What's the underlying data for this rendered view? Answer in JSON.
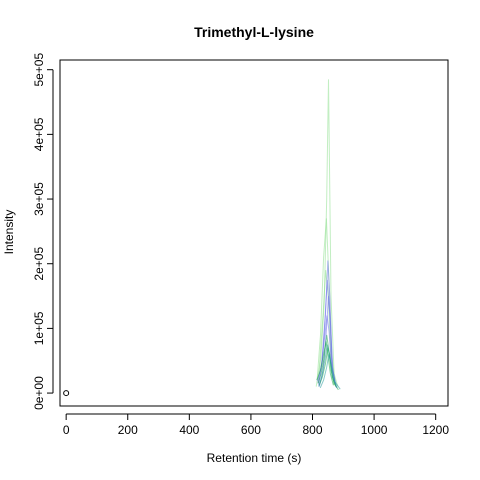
{
  "chart_data": {
    "type": "line",
    "title": "Trimethyl-L-lysine",
    "xlabel": "Retention time (s)",
    "ylabel": "Intensity",
    "xlim": [
      -20,
      1240
    ],
    "ylim": [
      -20000,
      515000
    ],
    "x_ticks": [
      0,
      200,
      400,
      600,
      800,
      1000,
      1200
    ],
    "x_tick_labels": [
      "0",
      "200",
      "400",
      "600",
      "800",
      "1000",
      "1200"
    ],
    "y_ticks": [
      0,
      100000,
      200000,
      300000,
      400000,
      500000
    ],
    "y_tick_labels": [
      "0e+00",
      "1e+05",
      "2e+05",
      "3e+05",
      "4e+05",
      "5e+05"
    ],
    "grid": false,
    "legend": "none",
    "marker_points": [
      {
        "x": 0,
        "y": 0
      }
    ],
    "series_groups": [
      {
        "group": "light-green",
        "color": "#8fe08f",
        "traces": [
          {
            "x": [
              818,
              828,
              838,
              846,
              852,
              860,
              870,
              882
            ],
            "y": [
              15000,
              60000,
              140000,
              300000,
              485000,
              150000,
              30000,
              10000
            ]
          },
          {
            "x": [
              815,
              826,
              836,
              845,
              853,
              862,
              874
            ],
            "y": [
              20000,
              90000,
              210000,
              270000,
              180000,
              60000,
              15000
            ]
          },
          {
            "x": [
              812,
              822,
              834,
              843,
              851,
              860,
              870
            ],
            "y": [
              10000,
              40000,
              120000,
              190000,
              150000,
              50000,
              12000
            ]
          }
        ]
      },
      {
        "group": "blue",
        "color": "#6f74ea",
        "traces": [
          {
            "x": [
              820,
              832,
              842,
              850,
              856,
              864,
              876
            ],
            "y": [
              12000,
              50000,
              120000,
              205000,
              150000,
              40000,
              10000
            ]
          },
          {
            "x": [
              818,
              830,
              840,
              848,
              855,
              863,
              875
            ],
            "y": [
              15000,
              45000,
              110000,
              175000,
              130000,
              45000,
              12000
            ]
          },
          {
            "x": [
              822,
              834,
              844,
              852,
              858,
              866,
              878
            ],
            "y": [
              10000,
              35000,
              90000,
              150000,
              110000,
              35000,
              8000
            ]
          },
          {
            "x": [
              816,
              828,
              838,
              847,
              854,
              862,
              872
            ],
            "y": [
              18000,
              40000,
              80000,
              120000,
              95000,
              40000,
              15000
            ]
          }
        ]
      },
      {
        "group": "green",
        "color": "#1aa84f",
        "traces": [
          {
            "x": [
              818,
              828,
              838,
              846,
              852,
              860,
              870,
              884
            ],
            "y": [
              15000,
              30000,
              55000,
              90000,
              70000,
              35000,
              15000,
              5000
            ]
          },
          {
            "x": [
              822,
              832,
              842,
              850,
              856,
              864,
              876
            ],
            "y": [
              12000,
              25000,
              45000,
              70000,
              60000,
              25000,
              10000
            ]
          },
          {
            "x": [
              814,
              826,
              836,
              844,
              851,
              858,
              868
            ],
            "y": [
              20000,
              35000,
              60000,
              80000,
              55000,
              30000,
              12000
            ]
          }
        ]
      },
      {
        "group": "teal",
        "color": "#2a9d9a",
        "traces": [
          {
            "x": [
              820,
              830,
              840,
              848,
              856,
              866,
              880
            ],
            "y": [
              10000,
              25000,
              50000,
              75000,
              55000,
              25000,
              8000
            ]
          },
          {
            "x": [
              825,
              836,
              846,
              853,
              860,
              872,
              890
            ],
            "y": [
              8000,
              20000,
              40000,
              60000,
              45000,
              18000,
              6000
            ]
          }
        ]
      }
    ]
  }
}
